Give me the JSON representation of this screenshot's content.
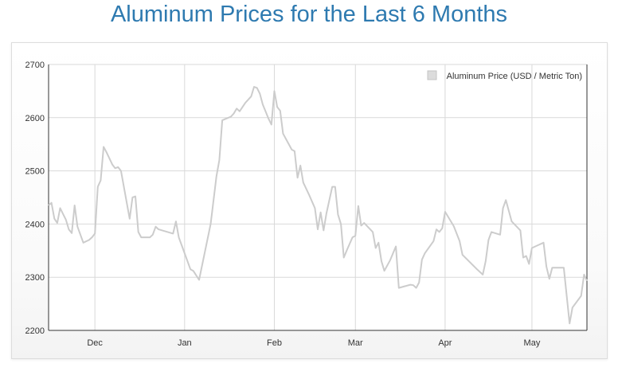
{
  "page": {
    "title": "Aluminum Prices for the Last 6 Months"
  },
  "colors": {
    "title": "#2e7ab0",
    "series": "#cccccc",
    "grid": "#d9d9d9",
    "axis": "#333333"
  },
  "chart_data": {
    "type": "line",
    "title": "Aluminum Prices for the Last 6 Months",
    "xlabel": "",
    "ylabel": "",
    "ylim": [
      2200,
      2700
    ],
    "yticks": [
      2200,
      2300,
      2400,
      2500,
      2600,
      2700
    ],
    "xlim": [
      "2022-11-15",
      "2023-05-20"
    ],
    "xticks": [
      {
        "date": "2022-12-01",
        "label": "Dec"
      },
      {
        "date": "2023-01-01",
        "label": "Jan"
      },
      {
        "date": "2023-02-01",
        "label": "Feb"
      },
      {
        "date": "2023-03-01",
        "label": "Mar"
      },
      {
        "date": "2023-04-01",
        "label": "Apr"
      },
      {
        "date": "2023-05-01",
        "label": "May"
      }
    ],
    "grid": true,
    "legend_position": "top-right",
    "series": [
      {
        "name": "Aluminum Price (USD / Metric Ton)",
        "points": [
          [
            "2022-11-15",
            2435
          ],
          [
            "2022-11-16",
            2440
          ],
          [
            "2022-11-17",
            2410
          ],
          [
            "2022-11-18",
            2402
          ],
          [
            "2022-11-19",
            2430
          ],
          [
            "2022-11-21",
            2408
          ],
          [
            "2022-11-22",
            2390
          ],
          [
            "2022-11-23",
            2383
          ],
          [
            "2022-11-24",
            2435
          ],
          [
            "2022-11-25",
            2395
          ],
          [
            "2022-11-27",
            2365
          ],
          [
            "2022-11-29",
            2370
          ],
          [
            "2022-11-30",
            2375
          ],
          [
            "2022-12-01",
            2382
          ],
          [
            "2022-12-02",
            2470
          ],
          [
            "2022-12-03",
            2482
          ],
          [
            "2022-12-04",
            2545
          ],
          [
            "2022-12-05",
            2535
          ],
          [
            "2022-12-07",
            2512
          ],
          [
            "2022-12-08",
            2505
          ],
          [
            "2022-12-09",
            2507
          ],
          [
            "2022-12-10",
            2500
          ],
          [
            "2022-12-13",
            2410
          ],
          [
            "2022-12-14",
            2450
          ],
          [
            "2022-12-15",
            2452
          ],
          [
            "2022-12-16",
            2385
          ],
          [
            "2022-12-17",
            2375
          ],
          [
            "2022-12-20",
            2375
          ],
          [
            "2022-12-21",
            2380
          ],
          [
            "2022-12-22",
            2395
          ],
          [
            "2022-12-23",
            2390
          ],
          [
            "2022-12-28",
            2382
          ],
          [
            "2022-12-29",
            2405
          ],
          [
            "2022-12-30",
            2375
          ],
          [
            "2023-01-01",
            2345
          ],
          [
            "2023-01-03",
            2315
          ],
          [
            "2023-01-04",
            2312
          ],
          [
            "2023-01-06",
            2295
          ],
          [
            "2023-01-10",
            2400
          ],
          [
            "2023-01-12",
            2490
          ],
          [
            "2023-01-13",
            2520
          ],
          [
            "2023-01-14",
            2595
          ],
          [
            "2023-01-17",
            2602
          ],
          [
            "2023-01-18",
            2608
          ],
          [
            "2023-01-19",
            2617
          ],
          [
            "2023-01-20",
            2612
          ],
          [
            "2023-01-22",
            2628
          ],
          [
            "2023-01-24",
            2640
          ],
          [
            "2023-01-25",
            2658
          ],
          [
            "2023-01-26",
            2656
          ],
          [
            "2023-01-27",
            2645
          ],
          [
            "2023-01-28",
            2625
          ],
          [
            "2023-01-30",
            2598
          ],
          [
            "2023-01-31",
            2587
          ],
          [
            "2023-02-01",
            2650
          ],
          [
            "2023-02-02",
            2620
          ],
          [
            "2023-02-03",
            2613
          ],
          [
            "2023-02-04",
            2570
          ],
          [
            "2023-02-07",
            2540
          ],
          [
            "2023-02-08",
            2537
          ],
          [
            "2023-02-09",
            2487
          ],
          [
            "2023-02-10",
            2510
          ],
          [
            "2023-02-11",
            2478
          ],
          [
            "2023-02-13",
            2455
          ],
          [
            "2023-02-15",
            2430
          ],
          [
            "2023-02-16",
            2390
          ],
          [
            "2023-02-17",
            2422
          ],
          [
            "2023-02-18",
            2388
          ],
          [
            "2023-02-19",
            2420
          ],
          [
            "2023-02-21",
            2470
          ],
          [
            "2023-02-22",
            2470
          ],
          [
            "2023-02-23",
            2418
          ],
          [
            "2023-02-24",
            2400
          ],
          [
            "2023-02-25",
            2337
          ],
          [
            "2023-02-26",
            2350
          ],
          [
            "2023-02-28",
            2375
          ],
          [
            "2023-03-01",
            2378
          ],
          [
            "2023-03-02",
            2434
          ],
          [
            "2023-03-03",
            2397
          ],
          [
            "2023-03-04",
            2402
          ],
          [
            "2023-03-07",
            2385
          ],
          [
            "2023-03-08",
            2355
          ],
          [
            "2023-03-09",
            2365
          ],
          [
            "2023-03-10",
            2330
          ],
          [
            "2023-03-11",
            2312
          ],
          [
            "2023-03-13",
            2332
          ],
          [
            "2023-03-15",
            2358
          ],
          [
            "2023-03-16",
            2280
          ],
          [
            "2023-03-18",
            2283
          ],
          [
            "2023-03-20",
            2286
          ],
          [
            "2023-03-21",
            2285
          ],
          [
            "2023-03-22",
            2280
          ],
          [
            "2023-03-23",
            2290
          ],
          [
            "2023-03-24",
            2333
          ],
          [
            "2023-03-25",
            2345
          ],
          [
            "2023-03-28",
            2368
          ],
          [
            "2023-03-29",
            2390
          ],
          [
            "2023-03-30",
            2385
          ],
          [
            "2023-03-31",
            2392
          ],
          [
            "2023-04-01",
            2423
          ],
          [
            "2023-04-03",
            2405
          ],
          [
            "2023-04-04",
            2396
          ],
          [
            "2023-04-06",
            2368
          ],
          [
            "2023-04-07",
            2342
          ],
          [
            "2023-04-12",
            2315
          ],
          [
            "2023-04-14",
            2305
          ],
          [
            "2023-04-15",
            2330
          ],
          [
            "2023-04-16",
            2370
          ],
          [
            "2023-04-17",
            2385
          ],
          [
            "2023-04-20",
            2380
          ],
          [
            "2023-04-21",
            2430
          ],
          [
            "2023-04-22",
            2445
          ],
          [
            "2023-04-24",
            2405
          ],
          [
            "2023-04-27",
            2388
          ],
          [
            "2023-04-28",
            2337
          ],
          [
            "2023-04-29",
            2340
          ],
          [
            "2023-04-30",
            2325
          ],
          [
            "2023-05-01",
            2355
          ],
          [
            "2023-05-03",
            2360
          ],
          [
            "2023-05-05",
            2365
          ],
          [
            "2023-05-06",
            2320
          ],
          [
            "2023-05-07",
            2297
          ],
          [
            "2023-05-08",
            2318
          ],
          [
            "2023-05-12",
            2318
          ],
          [
            "2023-05-13",
            2265
          ],
          [
            "2023-05-14",
            2213
          ],
          [
            "2023-05-15",
            2243
          ],
          [
            "2023-05-18",
            2265
          ],
          [
            "2023-05-19",
            2305
          ],
          [
            "2023-05-20",
            2293
          ]
        ]
      }
    ]
  }
}
